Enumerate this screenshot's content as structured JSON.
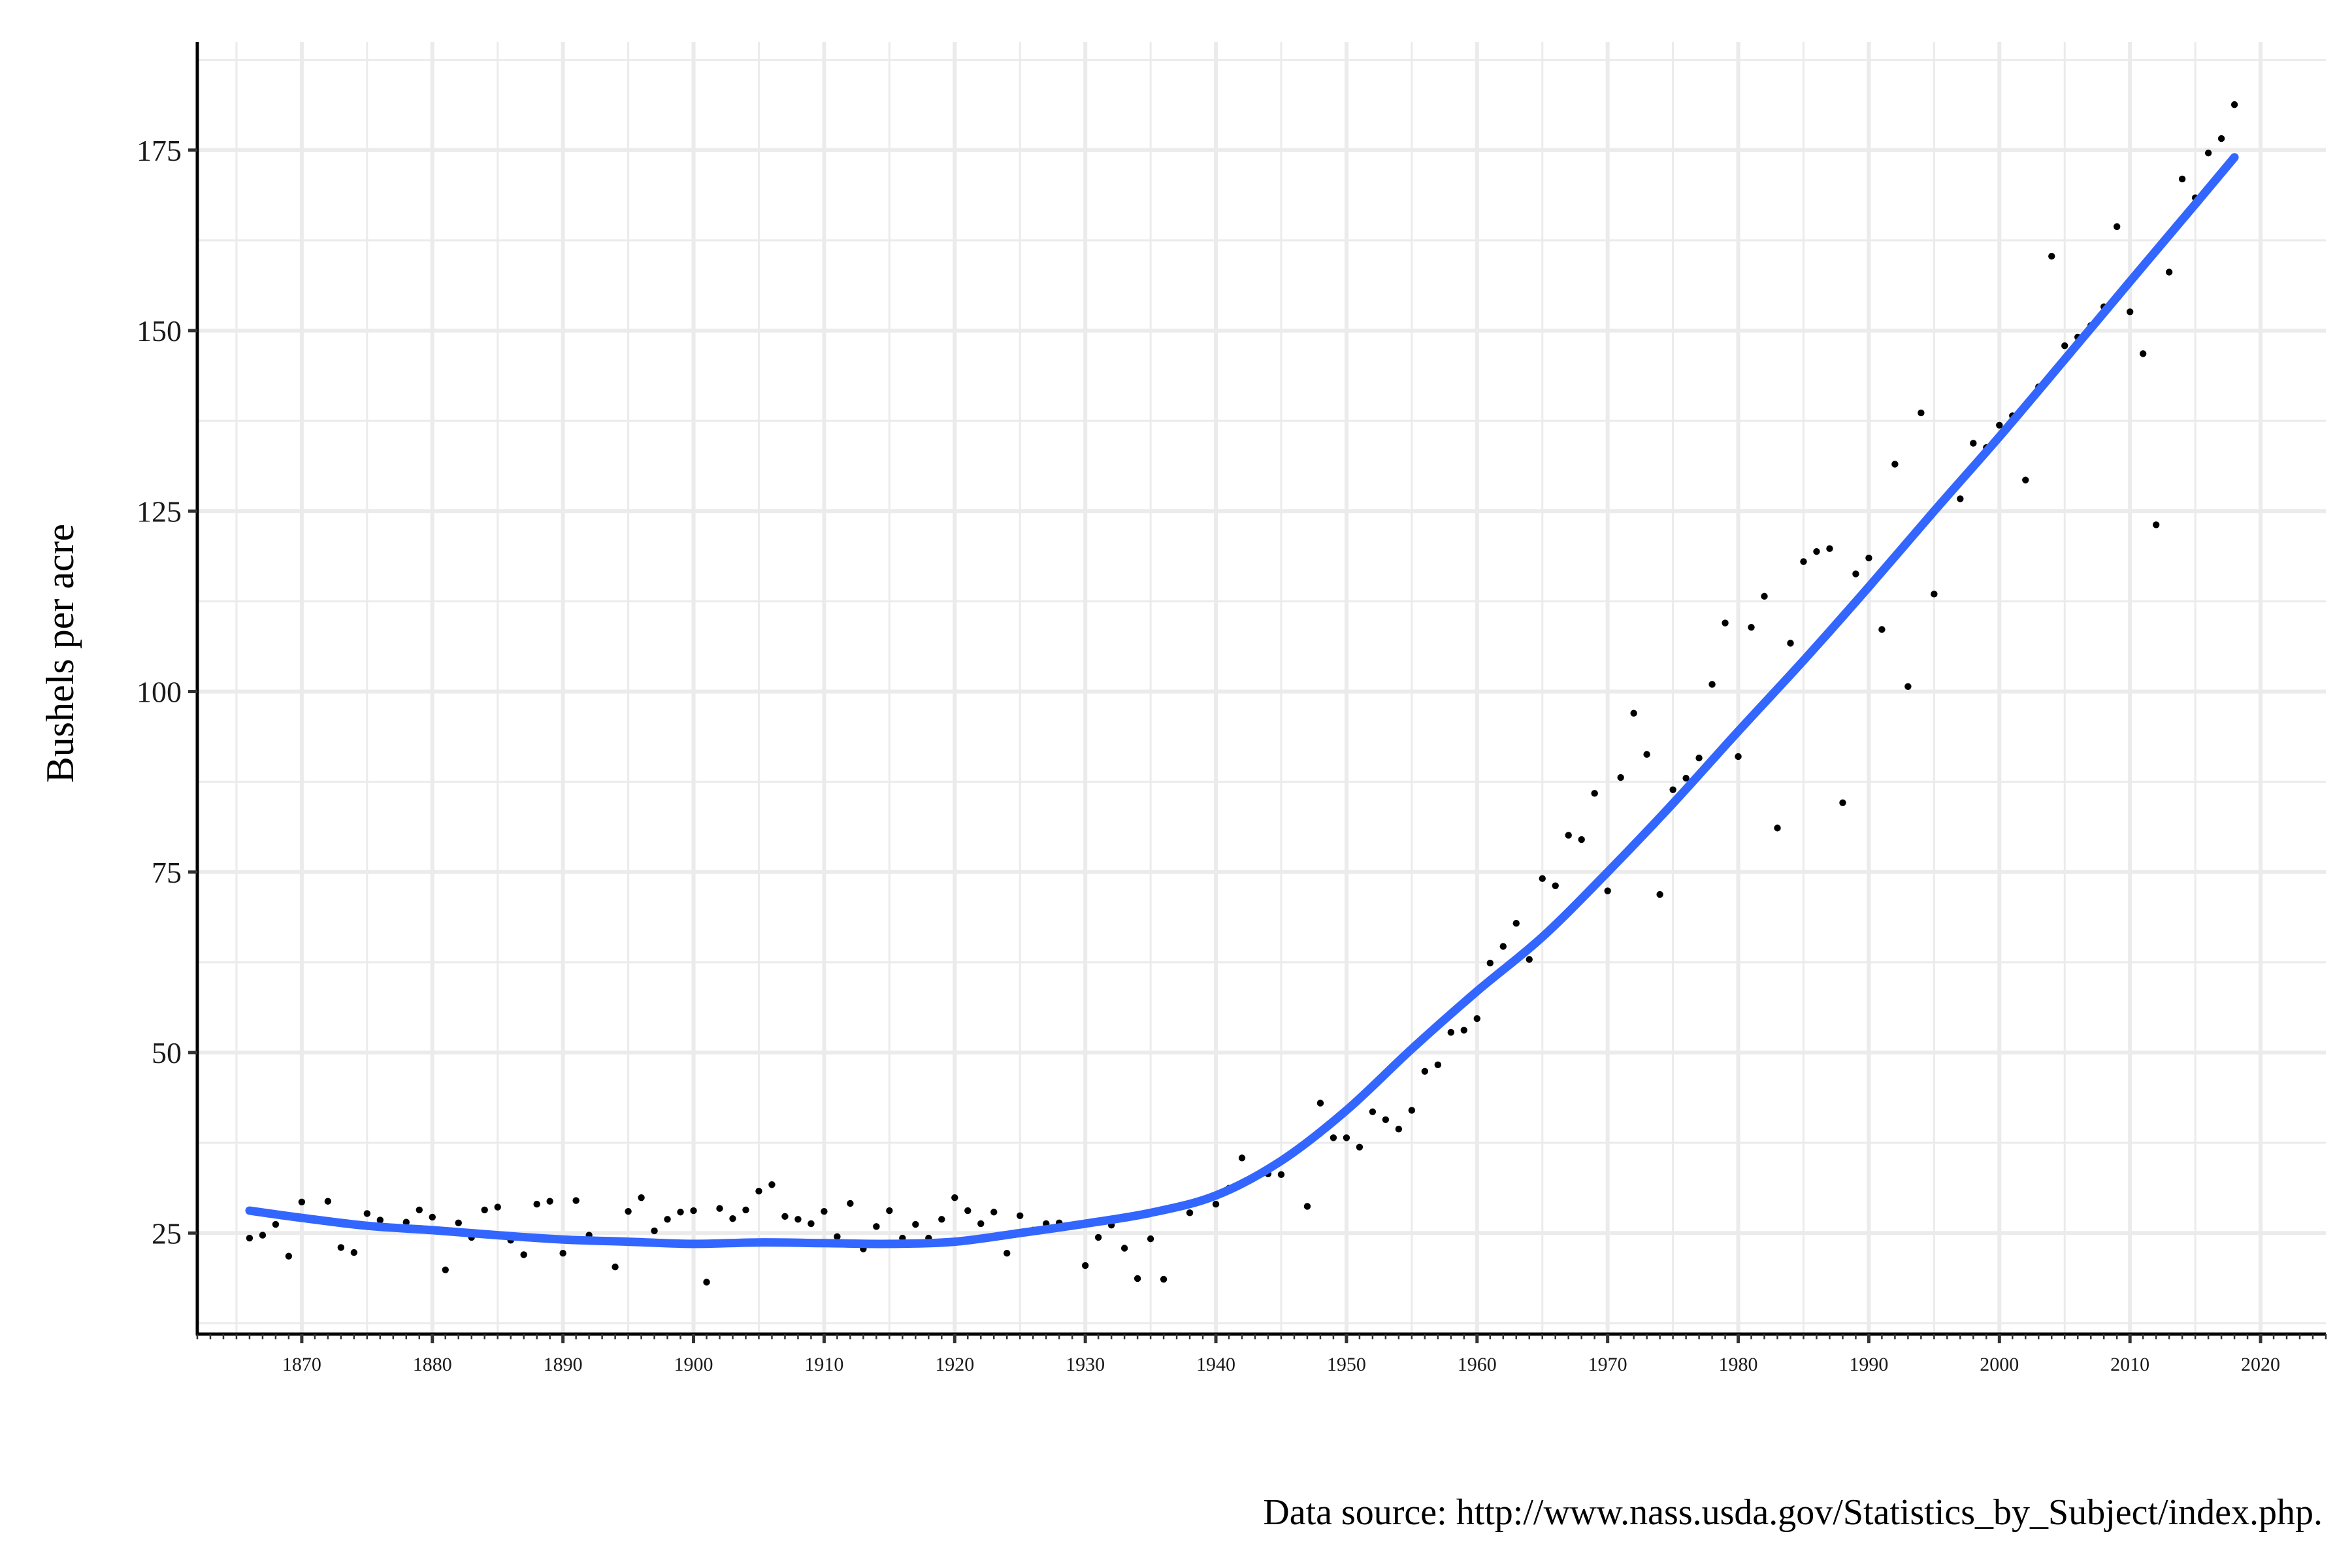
{
  "chart_data": {
    "type": "scatter",
    "title": "",
    "xlabel": "",
    "ylabel": "Bushels per acre",
    "xlim": [
      1862,
      2025
    ],
    "ylim": [
      11,
      190
    ],
    "x_ticks": [
      1870,
      1880,
      1890,
      1900,
      1910,
      1920,
      1930,
      1940,
      1950,
      1960,
      1970,
      1980,
      1990,
      2000,
      2010,
      2020
    ],
    "y_ticks": [
      25,
      50,
      75,
      100,
      125,
      150,
      175
    ],
    "grid": true,
    "legend": "none",
    "colors": {
      "points": "#000000",
      "trend": "#3366FF",
      "grid": "#EBEBEB",
      "axis": "#000000"
    },
    "caption": "Data source: http://www.nass.usda.gov/Statistics_by_Subject/index.php.",
    "series": [
      {
        "type": "scatter",
        "x": [
          1866,
          1867,
          1868,
          1869,
          1870,
          1872,
          1873,
          1874,
          1875,
          1876,
          1878,
          1879,
          1880,
          1881,
          1882,
          1883,
          1884,
          1885,
          1886,
          1887,
          1888,
          1889,
          1890,
          1891,
          1892,
          1894,
          1895,
          1896,
          1897,
          1898,
          1899,
          1900,
          1901,
          1902,
          1903,
          1904,
          1905,
          1906,
          1907,
          1908,
          1909,
          1910,
          1911,
          1912,
          1913,
          1914,
          1915,
          1916,
          1917,
          1918,
          1919,
          1920,
          1921,
          1922,
          1923,
          1924,
          1925,
          1926,
          1927,
          1928,
          1929,
          1930,
          1931,
          1932,
          1933,
          1934,
          1935,
          1936,
          1938,
          1940,
          1941,
          1942,
          1943,
          1944,
          1945,
          1947,
          1948,
          1949,
          1950,
          1951,
          1952,
          1953,
          1954,
          1955,
          1956,
          1957,
          1958,
          1959,
          1960,
          1961,
          1962,
          1963,
          1964,
          1965,
          1966,
          1967,
          1968,
          1969,
          1970,
          1971,
          1972,
          1973,
          1974,
          1975,
          1976,
          1977,
          1978,
          1979,
          1980,
          1981,
          1982,
          1983,
          1984,
          1985,
          1986,
          1987,
          1988,
          1989,
          1990,
          1991,
          1992,
          1993,
          1994,
          1995,
          1997,
          1998,
          1999,
          2000,
          2001,
          2002,
          2003,
          2004,
          2005,
          2006,
          2007,
          2008,
          2009,
          2010,
          2011,
          2012,
          2013,
          2014,
          2015,
          2016,
          2017,
          2018
        ],
        "y": [
          24.3,
          24.7,
          26.2,
          21.8,
          29.3,
          29.4,
          23.0,
          22.3,
          27.7,
          26.8,
          26.5,
          28.2,
          27.2,
          19.9,
          26.4,
          24.4,
          28.2,
          28.6,
          24.0,
          22.0,
          29.0,
          29.4,
          22.2,
          29.5,
          24.7,
          20.3,
          28.0,
          29.9,
          25.3,
          26.9,
          27.9,
          28.1,
          18.2,
          28.4,
          27.0,
          28.2,
          30.8,
          31.7,
          27.3,
          26.9,
          26.3,
          28.0,
          24.5,
          29.1,
          22.8,
          25.9,
          28.1,
          24.3,
          26.2,
          24.3,
          26.9,
          29.9,
          28.1,
          26.3,
          27.9,
          22.2,
          27.4,
          25.4,
          26.3,
          26.4,
          25.9,
          20.5,
          24.4,
          26.1,
          22.9,
          18.7,
          24.2,
          18.6,
          27.8,
          29.0,
          31.2,
          35.4,
          32.9,
          33.2,
          33.1,
          28.7,
          43.0,
          38.2,
          38.2,
          36.9,
          41.8,
          40.7,
          39.4,
          42.0,
          47.4,
          48.3,
          52.8,
          53.1,
          54.7,
          62.4,
          64.7,
          67.9,
          62.9,
          74.1,
          73.1,
          80.1,
          79.5,
          85.9,
          72.4,
          88.1,
          97.0,
          91.3,
          71.9,
          86.4,
          88.0,
          90.8,
          101.0,
          109.5,
          91.0,
          108.9,
          113.2,
          81.1,
          106.7,
          118.0,
          119.4,
          119.8,
          84.6,
          116.3,
          118.5,
          108.6,
          131.5,
          100.7,
          138.6,
          113.5,
          126.7,
          134.4,
          133.8,
          136.9,
          138.2,
          129.3,
          142.2,
          160.3,
          147.9,
          149.1,
          150.7,
          153.3,
          164.4,
          152.6,
          146.8,
          123.1,
          158.1,
          171.0,
          168.4,
          174.6,
          176.6,
          181.3
        ]
      },
      {
        "type": "line",
        "name": "",
        "x": [
          1866,
          1870,
          1875,
          1880,
          1885,
          1890,
          1895,
          1900,
          1905,
          1910,
          1915,
          1920,
          1925,
          1930,
          1935,
          1940,
          1945,
          1950,
          1955,
          1960,
          1965,
          1970,
          1975,
          1980,
          1985,
          1990,
          1995,
          2000,
          2005,
          2010,
          2015,
          2018
        ],
        "y": [
          28.1,
          27.1,
          26.0,
          25.4,
          24.7,
          24.1,
          23.8,
          23.5,
          23.7,
          23.6,
          23.5,
          23.8,
          25.0,
          26.3,
          27.8,
          30.2,
          35.0,
          42.0,
          50.5,
          58.5,
          66.0,
          75.0,
          84.5,
          94.5,
          104.3,
          114.5,
          125.0,
          135.3,
          146.0,
          156.8,
          167.5,
          174.0
        ]
      }
    ]
  }
}
